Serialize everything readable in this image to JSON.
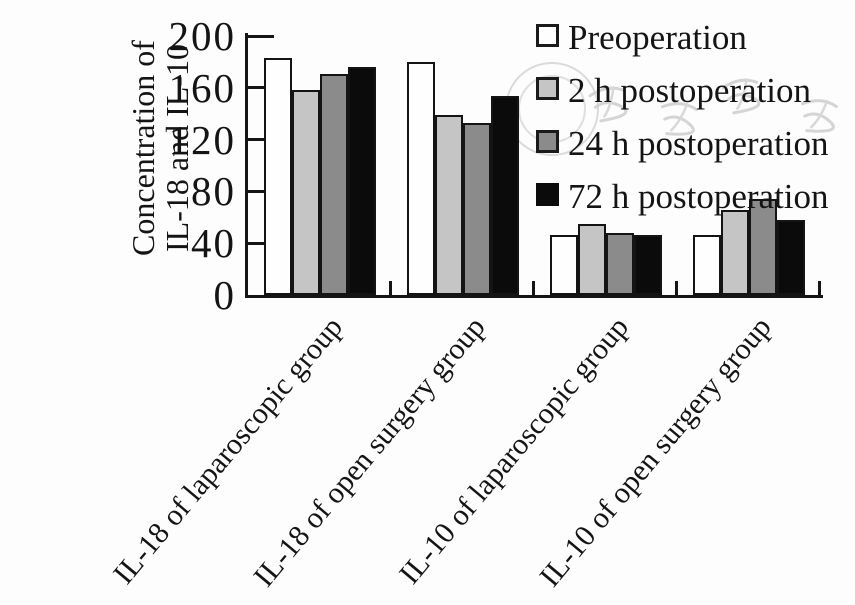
{
  "figure": {
    "background_color": "#fdfdfd",
    "axis_color": "#151515",
    "watermark_present": true
  },
  "chart_data": {
    "type": "bar",
    "title": "",
    "ylabel": "Concentration of IL-18 and IL-10",
    "ylabel_lines": [
      "Concentration of",
      "IL-18 and IL-10"
    ],
    "xlabel": "",
    "ylim": [
      0,
      200
    ],
    "yticks": [
      0,
      40,
      80,
      120,
      160,
      200
    ],
    "grid": false,
    "legend_position": "top-right",
    "categories": [
      "IL-18 of laparoscopic group",
      "IL-18 of open surgery group",
      "IL-10 of laparoscopic group",
      "IL-10 of open surgery group"
    ],
    "series": [
      {
        "name": "Preoperation",
        "color": "#fefefe",
        "values": [
          183,
          180,
          46,
          46
        ]
      },
      {
        "name": "2 h postoperation",
        "color": "#c5c5c5",
        "values": [
          158,
          139,
          55,
          66
        ]
      },
      {
        "name": "24 h postoperation",
        "color": "#8b8b8b",
        "values": [
          171,
          133,
          48,
          74
        ]
      },
      {
        "name": "72 h postoperation",
        "color": "#0b0b0b",
        "values": [
          176,
          154,
          46,
          58
        ]
      }
    ]
  }
}
